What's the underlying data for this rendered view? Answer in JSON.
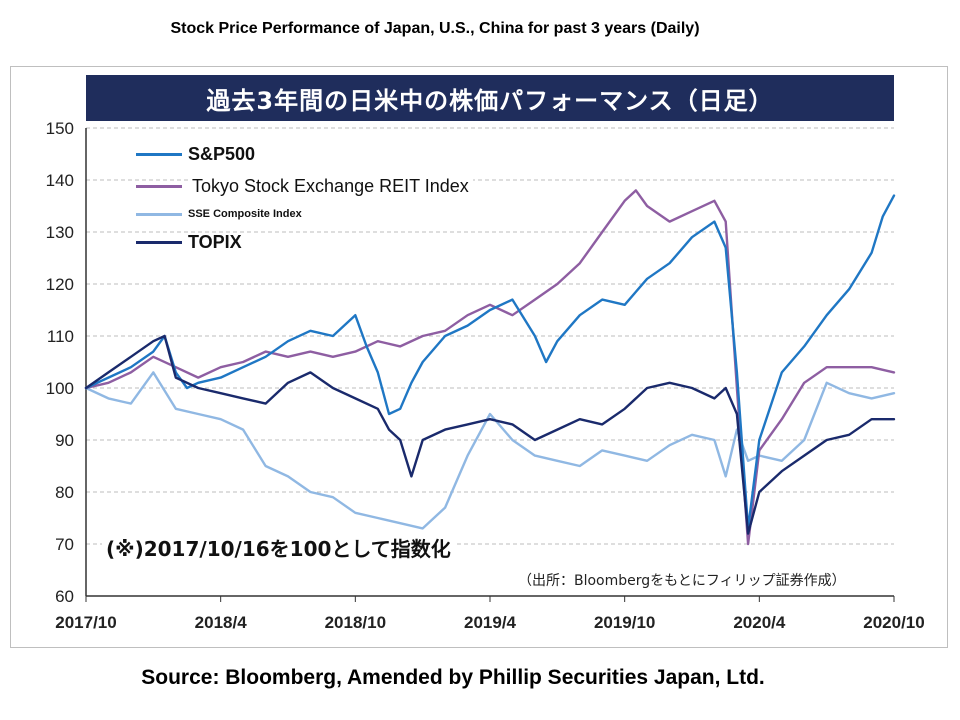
{
  "top_caption": "Stock Price Performance of Japan, U.S., China for past 3 years (Daily)",
  "bottom_caption": "Source: Bloomberg, Amended by Phillip Securities Japan, Ltd.",
  "chart_data": {
    "type": "line",
    "title": "過去3年間の日米中の株価パフォーマンス（日足）",
    "note": "(※)2017/10/16を100として指数化",
    "source_note": "（出所：Bloombergをもとにフィリップ証券作成）",
    "x_tick_labels": [
      "2017/10",
      "2018/4",
      "2018/10",
      "2019/4",
      "2019/10",
      "2020/4",
      "2020/10"
    ],
    "x_tick_months": [
      0,
      6,
      12,
      18,
      24,
      30,
      36
    ],
    "ylim": [
      60,
      150
    ],
    "y_ticks": [
      60,
      70,
      80,
      90,
      100,
      110,
      120,
      130,
      140,
      150
    ],
    "grid": true,
    "legend_position": "top-left",
    "series": [
      {
        "name": "S&P500",
        "color": "#1f77c4",
        "x": [
          0,
          1,
          2,
          3,
          3.5,
          4,
          4.5,
          5,
          6,
          7,
          8,
          9,
          10,
          11,
          12,
          12.5,
          13,
          13.5,
          14,
          14.5,
          15,
          16,
          17,
          18,
          19,
          20,
          20.5,
          21,
          22,
          23,
          24,
          25,
          26,
          27,
          28,
          28.5,
          29,
          29.5,
          30,
          31,
          32,
          33,
          34,
          35,
          35.5,
          36
        ],
        "values": [
          100,
          102,
          104,
          107,
          110,
          103,
          100,
          101,
          102,
          104,
          106,
          109,
          111,
          110,
          114,
          108,
          103,
          95,
          96,
          101,
          105,
          110,
          112,
          115,
          117,
          110,
          105,
          109,
          114,
          117,
          116,
          121,
          124,
          129,
          132,
          127,
          103,
          73,
          90,
          103,
          108,
          114,
          119,
          126,
          133,
          137
        ]
      },
      {
        "name": "Tokyo Stock Exchange REIT Index",
        "color": "#8e5ea2",
        "x": [
          0,
          1,
          2,
          3,
          4,
          5,
          6,
          7,
          8,
          9,
          10,
          11,
          12,
          13,
          14,
          15,
          16,
          17,
          18,
          19,
          20,
          21,
          22,
          23,
          24,
          24.5,
          25,
          26,
          27,
          28,
          28.5,
          29,
          29.5,
          30,
          31,
          32,
          33,
          34,
          35,
          36
        ],
        "values": [
          100,
          101,
          103,
          106,
          104,
          102,
          104,
          105,
          107,
          106,
          107,
          106,
          107,
          109,
          108,
          110,
          111,
          114,
          116,
          114,
          117,
          120,
          124,
          130,
          136,
          138,
          135,
          132,
          134,
          136,
          132,
          100,
          70,
          88,
          94,
          101,
          104,
          104,
          104,
          103
        ]
      },
      {
        "name": "SSE Composite Index",
        "color": "#90b8e3",
        "x": [
          0,
          1,
          2,
          3,
          4,
          5,
          6,
          7,
          8,
          9,
          10,
          11,
          12,
          13,
          14,
          15,
          16,
          17,
          18,
          19,
          20,
          21,
          22,
          23,
          24,
          25,
          26,
          27,
          28,
          28.5,
          29,
          29.5,
          30,
          31,
          32,
          33,
          34,
          35,
          36
        ],
        "values": [
          100,
          98,
          97,
          103,
          96,
          95,
          94,
          92,
          85,
          83,
          80,
          79,
          76,
          75,
          74,
          73,
          77,
          87,
          95,
          90,
          87,
          86,
          85,
          88,
          87,
          86,
          89,
          91,
          90,
          83,
          92,
          86,
          87,
          86,
          90,
          101,
          99,
          98,
          99
        ]
      },
      {
        "name": "TOPIX",
        "color": "#1a2a6c",
        "x": [
          0,
          1,
          2,
          3,
          3.5,
          4,
          5,
          6,
          7,
          8,
          9,
          10,
          11,
          12,
          13,
          13.5,
          14,
          14.5,
          15,
          16,
          17,
          18,
          19,
          20,
          21,
          22,
          23,
          24,
          25,
          26,
          27,
          28,
          28.5,
          29,
          29.5,
          30,
          31,
          32,
          33,
          34,
          35,
          36
        ],
        "values": [
          100,
          103,
          106,
          109,
          110,
          102,
          100,
          99,
          98,
          97,
          101,
          103,
          100,
          98,
          96,
          92,
          90,
          83,
          90,
          92,
          93,
          94,
          93,
          90,
          92,
          94,
          93,
          96,
          100,
          101,
          100,
          98,
          100,
          95,
          72,
          80,
          84,
          87,
          90,
          91,
          94,
          94
        ]
      }
    ]
  }
}
